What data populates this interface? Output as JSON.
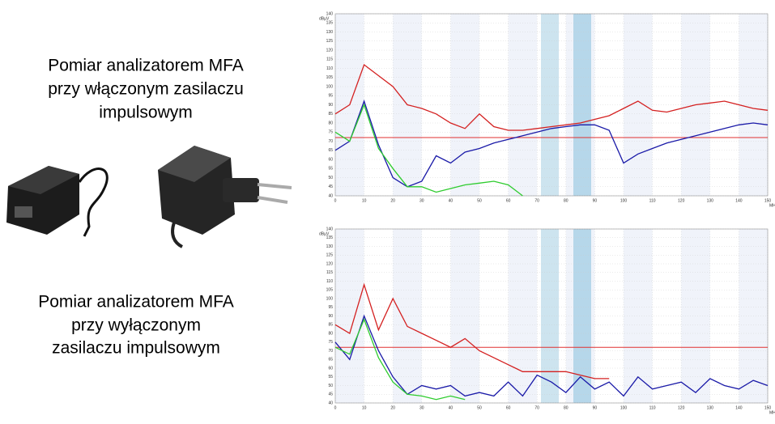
{
  "texts": {
    "caption_on": [
      "Pomiar analizatorem MFA",
      "przy włączonym zasilaczu",
      "impulsowym"
    ],
    "caption_off": [
      "Pomiar analizatorem MFA",
      "przy wyłączonym",
      "zasilaczu impulsowym"
    ]
  },
  "chart_data": [
    {
      "type": "line",
      "y_label": "dBµV",
      "x_label": "MHz",
      "x": [
        0,
        5,
        10,
        15,
        20,
        25,
        30,
        35,
        40,
        45,
        50,
        55,
        60,
        65,
        70,
        75,
        80,
        85,
        90,
        95,
        100,
        105,
        110,
        115,
        120,
        125,
        130,
        135,
        140,
        145,
        150
      ],
      "series": [
        {
          "color": "#d42020",
          "values": [
            85,
            90,
            112,
            106,
            100,
            90,
            88,
            85,
            80,
            77,
            85,
            78,
            76,
            76,
            77,
            78,
            79,
            80,
            82,
            84,
            88,
            92,
            87,
            86,
            88,
            90,
            91,
            92,
            90,
            88,
            87
          ]
        },
        {
          "color": "#1a1aa8",
          "values": [
            65,
            70,
            92,
            68,
            50,
            45,
            48,
            62,
            58,
            64,
            66,
            69,
            71,
            73,
            75,
            77,
            78,
            79,
            79,
            76,
            58,
            63,
            66,
            69,
            71,
            73,
            75,
            77,
            79,
            80,
            79
          ]
        },
        {
          "color": "#2ecc2e",
          "values": [
            75,
            70,
            90,
            66,
            55,
            45,
            45,
            42,
            44,
            46,
            47,
            48,
            46,
            40,
            null,
            null,
            null,
            null,
            null,
            null,
            null,
            null,
            null,
            null,
            null,
            null,
            null,
            null,
            null,
            null,
            null
          ]
        }
      ],
      "threshold": 72,
      "threshold_color": "#e03030",
      "xlim": [
        0,
        150
      ],
      "ylim": [
        40,
        140
      ],
      "xticks": [
        0,
        10,
        20,
        30,
        40,
        50,
        60,
        70,
        80,
        90,
        100,
        110,
        120,
        130,
        140,
        150
      ],
      "yticks": [
        40,
        45,
        50,
        55,
        60,
        65,
        70,
        75,
        80,
        85,
        90,
        95,
        100,
        105,
        110,
        115,
        120,
        125,
        130,
        135,
        140
      ],
      "grid": true
    },
    {
      "type": "line",
      "y_label": "dBµV",
      "x_label": "MHz",
      "x": [
        0,
        5,
        10,
        15,
        20,
        25,
        30,
        35,
        40,
        45,
        50,
        55,
        60,
        65,
        70,
        75,
        80,
        85,
        90,
        95,
        100,
        105,
        110,
        115,
        120,
        125,
        130,
        135,
        140,
        145,
        150
      ],
      "series": [
        {
          "color": "#d42020",
          "values": [
            85,
            80,
            108,
            82,
            100,
            84,
            80,
            76,
            72,
            77,
            70,
            66,
            62,
            58,
            58,
            58,
            58,
            56,
            54,
            54,
            null,
            null,
            null,
            null,
            null,
            null,
            null,
            null,
            null,
            null,
            null
          ]
        },
        {
          "color": "#1a1aa8",
          "values": [
            75,
            65,
            90,
            70,
            55,
            45,
            50,
            48,
            50,
            44,
            46,
            44,
            52,
            44,
            56,
            52,
            46,
            55,
            48,
            52,
            44,
            55,
            48,
            50,
            52,
            46,
            54,
            50,
            48,
            53,
            50
          ]
        },
        {
          "color": "#2ecc2e",
          "values": [
            72,
            68,
            88,
            66,
            52,
            45,
            44,
            42,
            44,
            42,
            null,
            null,
            null,
            null,
            null,
            null,
            null,
            null,
            null,
            null,
            null,
            null,
            null,
            null,
            null,
            null,
            null,
            null,
            null,
            null,
            null
          ]
        }
      ],
      "threshold": 72,
      "threshold_color": "#e03030",
      "xlim": [
        0,
        150
      ],
      "ylim": [
        40,
        140
      ],
      "xticks": [
        0,
        10,
        20,
        30,
        40,
        50,
        60,
        70,
        80,
        90,
        100,
        110,
        120,
        130,
        140,
        150
      ],
      "yticks": [
        40,
        45,
        50,
        55,
        60,
        65,
        70,
        75,
        80,
        85,
        90,
        95,
        100,
        105,
        110,
        115,
        120,
        125,
        130,
        135,
        140
      ],
      "grid": true
    }
  ]
}
